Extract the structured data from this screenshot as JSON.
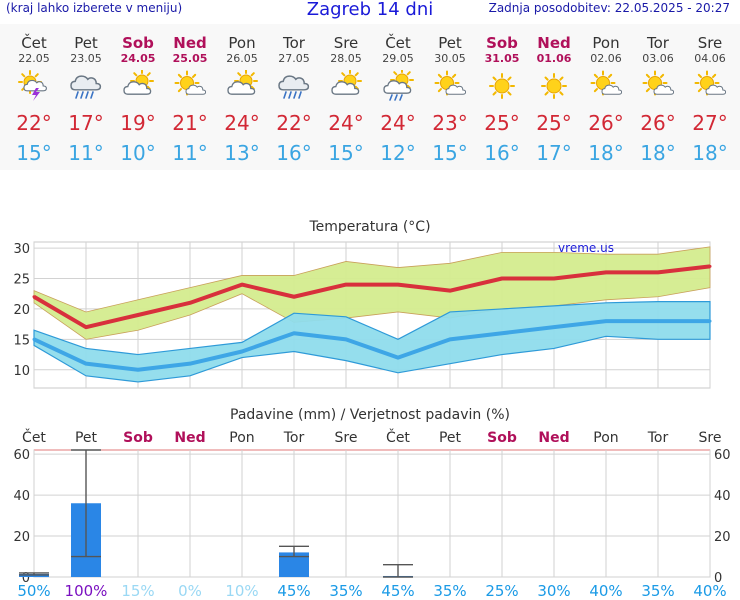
{
  "header": {
    "left_text": "(kraj lahko izberete v meniju)",
    "title": "Zagreb 14 dni",
    "updated": "Zadnja posodobitev: 22.05.2025 - 20:27"
  },
  "days": [
    {
      "name": "Čet",
      "date": "22.05",
      "weekend": false,
      "icon": "sun-cloud-lightning-icon",
      "max": "22°",
      "min": "15°"
    },
    {
      "name": "Pet",
      "date": "23.05",
      "weekend": false,
      "icon": "cloud-rain-icon",
      "max": "17°",
      "min": "11°"
    },
    {
      "name": "Sob",
      "date": "24.05",
      "weekend": true,
      "icon": "sun-cloud-icon",
      "max": "19°",
      "min": "10°"
    },
    {
      "name": "Ned",
      "date": "25.05",
      "weekend": true,
      "icon": "sun-small-cloud-icon",
      "max": "21°",
      "min": "11°"
    },
    {
      "name": "Pon",
      "date": "26.05",
      "weekend": false,
      "icon": "sun-cloud-icon",
      "max": "24°",
      "min": "13°"
    },
    {
      "name": "Tor",
      "date": "27.05",
      "weekend": false,
      "icon": "cloud-rain-icon",
      "max": "22°",
      "min": "16°"
    },
    {
      "name": "Sre",
      "date": "28.05",
      "weekend": false,
      "icon": "sun-cloud-icon",
      "max": "24°",
      "min": "15°"
    },
    {
      "name": "Čet",
      "date": "29.05",
      "weekend": false,
      "icon": "sun-cloud-rain-icon",
      "max": "24°",
      "min": "12°"
    },
    {
      "name": "Pet",
      "date": "30.05",
      "weekend": false,
      "icon": "sun-small-cloud-icon",
      "max": "23°",
      "min": "15°"
    },
    {
      "name": "Sob",
      "date": "31.05",
      "weekend": true,
      "icon": "sun-icon",
      "max": "25°",
      "min": "16°"
    },
    {
      "name": "Ned",
      "date": "01.06",
      "weekend": true,
      "icon": "sun-icon",
      "max": "25°",
      "min": "17°"
    },
    {
      "name": "Pon",
      "date": "02.06",
      "weekend": false,
      "icon": "sun-small-cloud-icon",
      "max": "26°",
      "min": "18°"
    },
    {
      "name": "Tor",
      "date": "03.06",
      "weekend": false,
      "icon": "sun-small-cloud-icon",
      "max": "26°",
      "min": "18°"
    },
    {
      "name": "Sre",
      "date": "04.06",
      "weekend": false,
      "icon": "sun-small-cloud-icon",
      "max": "27°",
      "min": "18°"
    }
  ],
  "colors": {
    "max_line": "#d8303c",
    "max_band": "#d4ec8e",
    "min_line": "#3ea6e6",
    "min_band": "#8fdcec",
    "precip_bar": "#2a86e6",
    "weekend": "#b0105a",
    "prob_100": "#7a10c0",
    "prob_high": "#1a9ae6",
    "prob_low": "#9ad8f4"
  },
  "chart_data": [
    {
      "type": "line",
      "title": "Temperatura (°C)",
      "watermark": "vreme.us",
      "categories": [
        "Čet",
        "Pet",
        "Sob",
        "Ned",
        "Pon",
        "Tor",
        "Sre",
        "Čet",
        "Pet",
        "Sob",
        "Ned",
        "Pon",
        "Tor",
        "Sre"
      ],
      "ylim": [
        7,
        31
      ],
      "yticks": [
        10,
        15,
        20,
        25,
        30
      ],
      "grid": true,
      "series": [
        {
          "values": [
            22,
            17,
            19,
            21,
            24,
            22,
            24,
            24,
            23,
            25,
            25,
            26,
            26,
            27
          ],
          "band_high": [
            23,
            19.5,
            21.5,
            23.5,
            25.5,
            25.5,
            27.8,
            26.8,
            27.5,
            29.3,
            29.3,
            29,
            29,
            30.2
          ],
          "band_low": [
            21,
            15,
            16.5,
            19,
            22.5,
            17.8,
            18.5,
            19.5,
            18.5,
            20,
            20.5,
            21.5,
            22,
            23.5
          ]
        },
        {
          "values": [
            15,
            11,
            10,
            11,
            13,
            16,
            15,
            12,
            15,
            16,
            17,
            18,
            18,
            18
          ],
          "band_high": [
            16.5,
            13.5,
            12.5,
            13.5,
            14.5,
            19.3,
            18.7,
            15,
            19.5,
            20,
            20.5,
            21,
            21.2,
            21.2
          ],
          "band_low": [
            14,
            9,
            8,
            9,
            12,
            13,
            11.5,
            9.5,
            11,
            12.5,
            13.5,
            15.5,
            15,
            15
          ]
        }
      ]
    },
    {
      "type": "bar",
      "title": "Padavine (mm) / Verjetnost padavin (%)",
      "categories": [
        "Čet",
        "Pet",
        "Sob",
        "Ned",
        "Pon",
        "Tor",
        "Sre",
        "Čet",
        "Pet",
        "Sob",
        "Ned",
        "Pon",
        "Tor",
        "Sre"
      ],
      "ylim": [
        0,
        62
      ],
      "yticks": [
        0,
        20,
        40,
        60
      ],
      "values": [
        1.5,
        36,
        0,
        0,
        0,
        12,
        0,
        0.5,
        0,
        0,
        0,
        0,
        0,
        0
      ],
      "error_high": [
        2,
        62,
        0,
        0,
        0,
        15,
        0,
        6,
        0,
        0,
        0,
        0,
        0,
        0
      ],
      "error_low": [
        1,
        10,
        0,
        0,
        0,
        10,
        0,
        0,
        0,
        0,
        0,
        0,
        0,
        0
      ],
      "probability": [
        "50%",
        "100%",
        "15%",
        "0%",
        "10%",
        "45%",
        "35%",
        "45%",
        "35%",
        "25%",
        "30%",
        "40%",
        "35%",
        "40%"
      ]
    }
  ]
}
